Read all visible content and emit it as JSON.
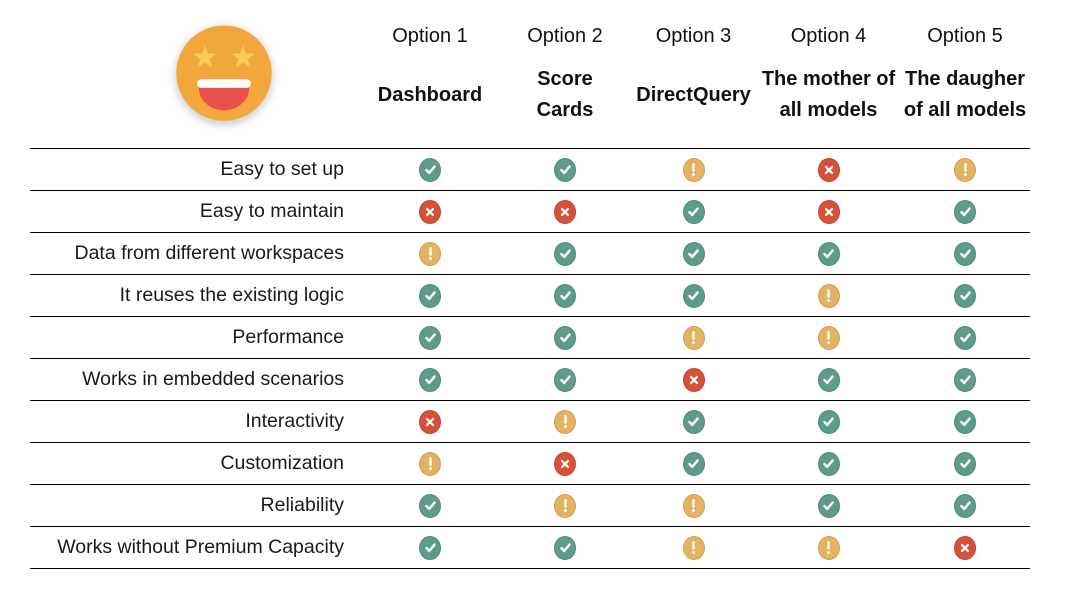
{
  "page": {
    "background": "#ffffff",
    "line_color": "#000000"
  },
  "emoji": {
    "label": "star-struck-emoji",
    "face_color": "#F2A73C",
    "star_color": "#F6CE55",
    "teeth_color": "#FFFFFF",
    "mouth_color": "#E8504C"
  },
  "icons": {
    "check": {
      "icon_name": "check-icon",
      "color": "#5E9B8B",
      "border": "#4D8B7B"
    },
    "cross": {
      "icon_name": "cross-icon",
      "color": "#D5513A",
      "border": "#C24431"
    },
    "warn": {
      "icon_name": "exclamation-icon",
      "color": "#E3B364",
      "border": "#CFA051"
    }
  },
  "table": {
    "columns": [
      {
        "option": "Option 1",
        "name": "Dashboard",
        "name_lines": [
          "Dashboard"
        ]
      },
      {
        "option": "Option 2",
        "name": "Score Cards",
        "name_lines": [
          "Score",
          "Cards"
        ]
      },
      {
        "option": "Option 3",
        "name": "DirectQuery",
        "name_lines": [
          "DirectQuery"
        ]
      },
      {
        "option": "Option 4",
        "name": "The mother of all models",
        "name_lines": [
          "The mother of",
          "all models"
        ]
      },
      {
        "option": "Option 5",
        "name": "The daugher of all models",
        "name_lines": [
          "The daugher",
          "of all models"
        ]
      }
    ],
    "rows": [
      {
        "label": "Easy to set up",
        "values": [
          "check",
          "check",
          "warn",
          "cross",
          "warn"
        ]
      },
      {
        "label": "Easy to maintain",
        "values": [
          "cross",
          "cross",
          "check",
          "cross",
          "check"
        ]
      },
      {
        "label": "Data from different workspaces",
        "values": [
          "warn",
          "check",
          "check",
          "check",
          "check"
        ]
      },
      {
        "label": "It reuses the existing logic",
        "values": [
          "check",
          "check",
          "check",
          "warn",
          "check"
        ]
      },
      {
        "label": "Performance",
        "values": [
          "check",
          "check",
          "warn",
          "warn",
          "check"
        ]
      },
      {
        "label": "Works in embedded scenarios",
        "values": [
          "check",
          "check",
          "cross",
          "check",
          "check"
        ]
      },
      {
        "label": "Interactivity",
        "values": [
          "cross",
          "warn",
          "check",
          "check",
          "check"
        ]
      },
      {
        "label": "Customization",
        "values": [
          "warn",
          "cross",
          "check",
          "check",
          "check"
        ]
      },
      {
        "label": "Reliability",
        "values": [
          "check",
          "warn",
          "warn",
          "check",
          "check"
        ]
      },
      {
        "label": "Works without Premium Capacity",
        "values": [
          "check",
          "check",
          "warn",
          "warn",
          "cross"
        ]
      }
    ]
  }
}
